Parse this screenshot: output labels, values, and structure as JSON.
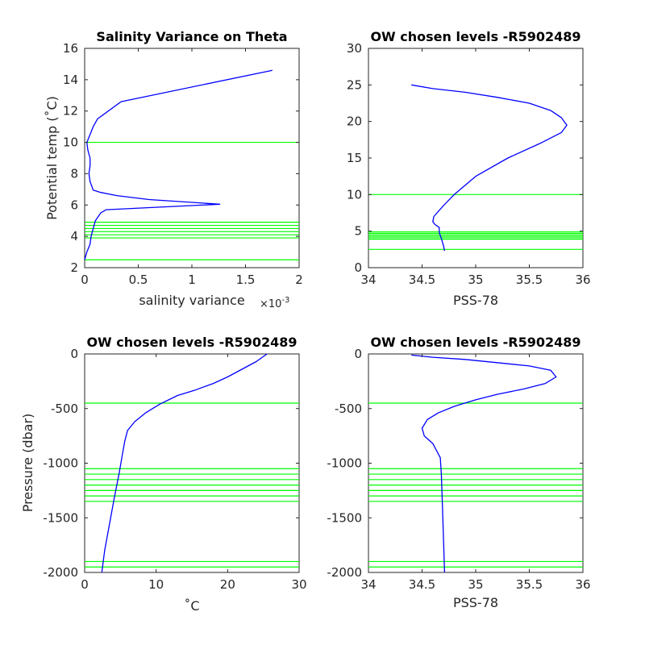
{
  "chart_data": [
    {
      "type": "line",
      "title": "Salinity Variance on Theta",
      "xlabel": "salinity variance",
      "x_exponent_base": "×10",
      "x_exponent": "-3",
      "ylabel": "Potential temp (˚C)",
      "xlim": [
        0,
        2
      ],
      "ylim": [
        2,
        16
      ],
      "xticks": [
        "0",
        "0.5",
        "1",
        "1.5",
        "2"
      ],
      "yticks": [
        "2",
        "4",
        "6",
        "8",
        "10",
        "12",
        "14",
        "16"
      ],
      "series": [
        {
          "color": "#0000ff",
          "x": [
            0.0,
            0.02,
            0.05,
            0.06,
            0.08,
            0.1,
            0.15,
            0.2,
            1.26,
            0.6,
            0.3,
            0.15,
            0.08,
            0.05,
            0.04,
            0.05,
            0.05,
            0.03,
            0.02,
            0.05,
            0.08,
            0.12,
            0.34,
            1.75
          ],
          "y": [
            2.5,
            3.0,
            3.5,
            4.0,
            4.5,
            5.0,
            5.5,
            5.7,
            6.05,
            6.35,
            6.6,
            6.8,
            6.95,
            7.5,
            8.0,
            8.5,
            9.0,
            9.5,
            10.0,
            10.5,
            11.0,
            11.5,
            12.6,
            14.6
          ]
        }
      ],
      "hlines": [
        2.5,
        3.9,
        4.1,
        4.3,
        4.5,
        4.7,
        4.9,
        10.0
      ],
      "hline_color": "#00ff00"
    },
    {
      "type": "line",
      "title": "OW chosen levels -R5902489",
      "xlabel": "PSS-78",
      "ylabel": "",
      "xlim": [
        34,
        36
      ],
      "ylim": [
        0,
        30
      ],
      "xticks": [
        "34",
        "34.5",
        "35",
        "35.5",
        "36"
      ],
      "yticks": [
        "0",
        "5",
        "10",
        "15",
        "20",
        "25",
        "30"
      ],
      "series": [
        {
          "color": "#0000ff",
          "x": [
            34.71,
            34.7,
            34.68,
            34.66,
            34.66,
            34.62,
            34.6,
            34.61,
            34.7,
            34.8,
            35.0,
            35.3,
            35.6,
            35.8,
            35.85,
            35.8,
            35.7,
            35.5,
            35.2,
            34.9,
            34.6,
            34.4
          ],
          "y": [
            2.3,
            3.0,
            4.0,
            4.8,
            5.5,
            5.9,
            6.3,
            7.0,
            8.5,
            10.0,
            12.5,
            15.0,
            17.0,
            18.5,
            19.5,
            20.5,
            21.5,
            22.5,
            23.3,
            24.0,
            24.5,
            25.0
          ]
        }
      ],
      "hlines": [
        2.5,
        3.9,
        4.1,
        4.3,
        4.5,
        4.7,
        4.9,
        10.0
      ],
      "hline_color": "#00ff00"
    },
    {
      "type": "line",
      "title": "OW chosen levels -R5902489",
      "xlabel": "˚C",
      "ylabel": "Pressure (dbar)",
      "xlim": [
        0,
        30
      ],
      "ylim": [
        -2000,
        0
      ],
      "xticks": [
        "0",
        "10",
        "20",
        "30"
      ],
      "yticks": [
        "-2000",
        "-1500",
        "-1000",
        "-500",
        "0"
      ],
      "series": [
        {
          "color": "#0000ff",
          "x": [
            2.4,
            2.8,
            3.5,
            4.2,
            4.8,
            5.2,
            5.6,
            6.0,
            7.0,
            8.5,
            10.5,
            13.0,
            15.5,
            18.0,
            20.0,
            22.0,
            24.0,
            25.5
          ],
          "y": [
            -2000,
            -1800,
            -1550,
            -1300,
            -1100,
            -950,
            -800,
            -700,
            -620,
            -540,
            -460,
            -380,
            -330,
            -270,
            -210,
            -140,
            -70,
            0
          ]
        }
      ],
      "hlines": [
        -450,
        -1050,
        -1100,
        -1150,
        -1200,
        -1250,
        -1300,
        -1350,
        -1900,
        -1950
      ],
      "hline_color": "#00ff00"
    },
    {
      "type": "line",
      "title": "OW chosen levels -R5902489",
      "xlabel": "PSS-78",
      "ylabel": "",
      "xlim": [
        34,
        36
      ],
      "ylim": [
        -2000,
        0
      ],
      "xticks": [
        "34",
        "34.5",
        "35",
        "35.5",
        "36"
      ],
      "yticks": [
        "-2000",
        "-1500",
        "-1000",
        "-500",
        "0"
      ],
      "series": [
        {
          "color": "#0000ff",
          "x": [
            34.71,
            34.7,
            34.69,
            34.68,
            34.67,
            34.6,
            34.52,
            34.5,
            34.55,
            34.65,
            34.8,
            35.0,
            35.2,
            35.45,
            35.65,
            35.75,
            35.7,
            35.5,
            35.2,
            34.9,
            34.6,
            34.4
          ],
          "y": [
            -2000,
            -1700,
            -1400,
            -1100,
            -950,
            -820,
            -750,
            -680,
            -600,
            -540,
            -480,
            -420,
            -370,
            -320,
            -270,
            -210,
            -150,
            -110,
            -80,
            -50,
            -30,
            -10
          ]
        }
      ],
      "hlines": [
        -450,
        -1050,
        -1100,
        -1150,
        -1200,
        -1250,
        -1300,
        -1350,
        -1900,
        -1950
      ],
      "hline_color": "#00ff00"
    }
  ]
}
